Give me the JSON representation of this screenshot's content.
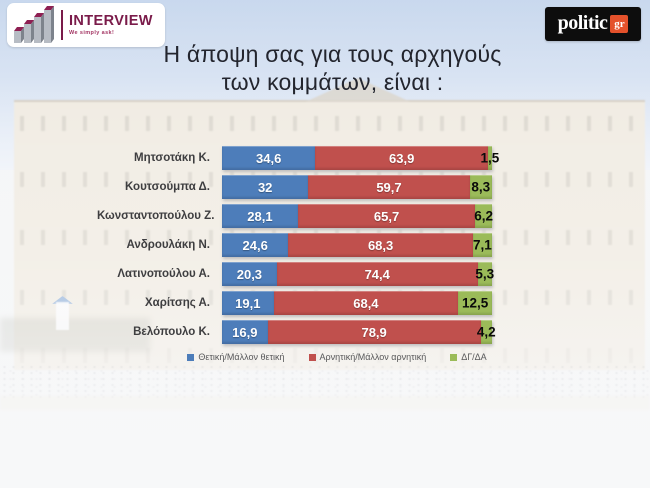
{
  "header": {
    "interview_logo": {
      "name": "INTERVIEW",
      "tagline": "We simply ask!"
    },
    "politic_logo": {
      "name": "politic",
      "suffix": "gr"
    }
  },
  "title": {
    "line1": "Η άποψη σας για τους αρχηγούς",
    "line2": "των κομμάτων,  είναι :"
  },
  "chart_data": {
    "type": "bar",
    "orientation": "horizontal",
    "stacked": true,
    "unit": "percent",
    "xlim": [
      0,
      100
    ],
    "grid": false,
    "legend_position": "bottom",
    "categories": [
      "Μητσοτάκη Κ.",
      "Κουτσούμπα Δ.",
      "Κωνσταντοπούλου Ζ.",
      "Ανδρουλάκη Ν.",
      "Λατινοπούλου Α.",
      "Χαρίτσης Α.",
      "Βελόπουλο Κ."
    ],
    "series": [
      {
        "name": "Θετική/Μάλλον θετική",
        "color": "#4d7dba",
        "values": [
          34.6,
          32,
          28.1,
          24.6,
          20.3,
          19.1,
          16.9
        ]
      },
      {
        "name": "Αρνητική/Μάλλον αρνητική",
        "color": "#c0504d",
        "values": [
          63.9,
          59.7,
          65.7,
          68.3,
          74.4,
          68.4,
          78.9
        ]
      },
      {
        "name": "ΔΓ/ΔΑ",
        "color": "#9bbb59",
        "values": [
          1.5,
          8.3,
          6.2,
          7.1,
          5.3,
          12.5,
          4.2
        ]
      }
    ],
    "decimal_separator": ","
  },
  "brand": {
    "interview_maroon": "#7a1b4a",
    "politic_orange": "#e4512b"
  }
}
